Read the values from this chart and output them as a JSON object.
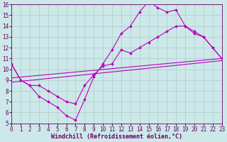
{
  "background_color": "#cde8e8",
  "grid_color": "#aacccc",
  "line_color": "#bb00bb",
  "xlabel": "Windchill (Refroidissement éolien,°C)",
  "xlim": [
    0,
    23
  ],
  "ylim": [
    5,
    16
  ],
  "xticks": [
    0,
    1,
    2,
    3,
    4,
    5,
    6,
    7,
    8,
    9,
    10,
    11,
    12,
    13,
    14,
    15,
    16,
    17,
    18,
    19,
    20,
    21,
    22,
    23
  ],
  "yticks": [
    5,
    6,
    7,
    8,
    9,
    10,
    11,
    12,
    13,
    14,
    15,
    16
  ],
  "series1_x": [
    0,
    1,
    2,
    3,
    4,
    5,
    6,
    7,
    8,
    9,
    10,
    11,
    12,
    13,
    14,
    15,
    16,
    17,
    18,
    19,
    20,
    21,
    22,
    23
  ],
  "series1_y": [
    10.5,
    9.0,
    8.5,
    7.5,
    7.0,
    6.5,
    5.7,
    5.3,
    7.2,
    9.3,
    10.5,
    11.8,
    13.3,
    14.0,
    15.3,
    16.3,
    15.7,
    15.3,
    15.5,
    14.0,
    13.3,
    13.0,
    12.0,
    11.0
  ],
  "series2_x": [
    0,
    1,
    2,
    3,
    4,
    5,
    6,
    7,
    8,
    9,
    10,
    11,
    12,
    13,
    14,
    15,
    16,
    17,
    18,
    19,
    20,
    21,
    22,
    23
  ],
  "series2_y": [
    10.5,
    9.0,
    8.5,
    8.5,
    8.0,
    7.5,
    7.0,
    6.8,
    8.5,
    9.5,
    10.3,
    10.5,
    11.8,
    11.5,
    12.0,
    12.5,
    13.0,
    13.5,
    14.0,
    14.0,
    13.5,
    13.0,
    12.0,
    11.0
  ],
  "series3_x": [
    0,
    23
  ],
  "series3_y": [
    9.2,
    11.0
  ],
  "series4_x": [
    0,
    23
  ],
  "series4_y": [
    8.8,
    10.8
  ],
  "font_size": 6,
  "tick_font_size": 5.5,
  "title_color": "#660066"
}
